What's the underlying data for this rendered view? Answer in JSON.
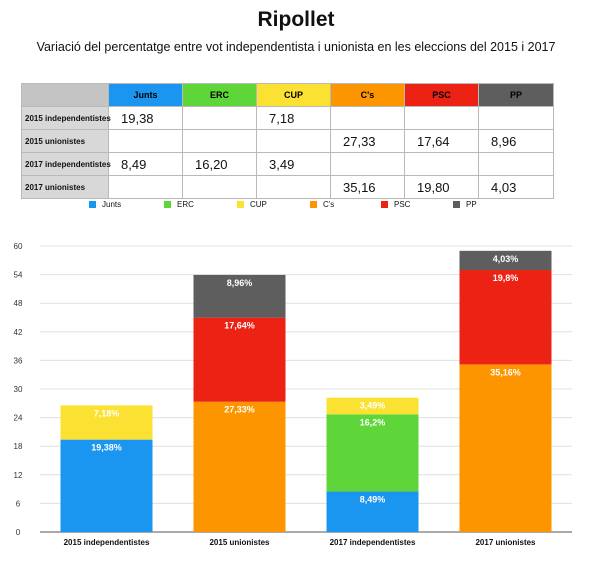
{
  "title": "Ripollet",
  "subtitle": "Variació del percentatge entre vot independentista i unionista en les eleccions del 2015 i 2017",
  "parties": [
    {
      "name": "Junts",
      "color": "#1a96f0"
    },
    {
      "name": "ERC",
      "color": "#5ed63a"
    },
    {
      "name": "CUP",
      "color": "#fbe232"
    },
    {
      "name": "C's",
      "color": "#fd9500"
    },
    {
      "name": "PSC",
      "color": "#ec2215"
    },
    {
      "name": "PP",
      "color": "#5e5e5e"
    }
  ],
  "table": {
    "rows": [
      {
        "label": "2015 independentistes",
        "cells": [
          "19,38",
          "",
          "7,18",
          "",
          "",
          ""
        ]
      },
      {
        "label": "2015 unionistes",
        "cells": [
          "",
          "",
          "",
          "27,33",
          "17,64",
          "8,96"
        ]
      },
      {
        "label": "2017 independentistes",
        "cells": [
          "8,49",
          "16,20",
          "3,49",
          "",
          "",
          ""
        ]
      },
      {
        "label": "2017 unionistes",
        "cells": [
          "",
          "",
          "",
          "35,16",
          "19,80",
          "4,03"
        ]
      }
    ]
  },
  "chart_data": {
    "type": "bar",
    "stacked": true,
    "categories": [
      "2015 independentistes",
      "2015 unionistes",
      "2017 independentistes",
      "2017 unionistes"
    ],
    "series": [
      {
        "name": "Junts",
        "values": [
          19.38,
          0,
          8.49,
          0
        ],
        "labels": [
          "19,38%",
          "",
          "8,49%",
          ""
        ]
      },
      {
        "name": "ERC",
        "values": [
          0,
          0,
          16.2,
          0
        ],
        "labels": [
          "",
          "",
          "16,2%",
          ""
        ]
      },
      {
        "name": "CUP",
        "values": [
          7.18,
          0,
          3.49,
          0
        ],
        "labels": [
          "7,18%",
          "",
          "3,49%",
          ""
        ]
      },
      {
        "name": "C's",
        "values": [
          0,
          27.33,
          0,
          35.16
        ],
        "labels": [
          "",
          "27,33%",
          "",
          "35,16%"
        ]
      },
      {
        "name": "PSC",
        "values": [
          0,
          17.64,
          0,
          19.8
        ],
        "labels": [
          "",
          "17,64%",
          "",
          "19,8%"
        ]
      },
      {
        "name": "PP",
        "values": [
          0,
          8.96,
          0,
          4.03
        ],
        "labels": [
          "",
          "8,96%",
          "",
          "4,03%"
        ]
      }
    ],
    "yticks": [
      "0",
      "6",
      "12",
      "18",
      "24",
      "30",
      "36",
      "42",
      "48",
      "54",
      "60"
    ],
    "ylim": [
      0,
      60
    ],
    "grid": true,
    "legend": "top"
  }
}
